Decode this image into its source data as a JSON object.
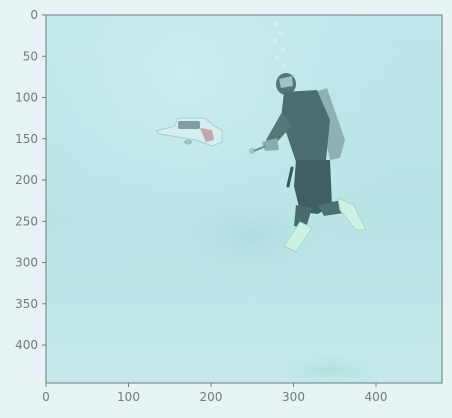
{
  "photo": {
    "subject": "scuba diver with an underwater scooter",
    "colors": {
      "water": "#bfe8ea",
      "water_deep": "#9fcfd1",
      "diver": "#4e6f72",
      "fin": "#c8f0e4",
      "scooter": "#d9f0f1"
    }
  },
  "axes": {
    "x_ticks": [
      "0",
      "100",
      "200",
      "300",
      "400"
    ],
    "y_ticks": [
      "0",
      "50",
      "100",
      "150",
      "200",
      "250",
      "300",
      "350",
      "400"
    ],
    "xlim": [
      0,
      480
    ],
    "ylim": [
      0,
      446
    ]
  }
}
